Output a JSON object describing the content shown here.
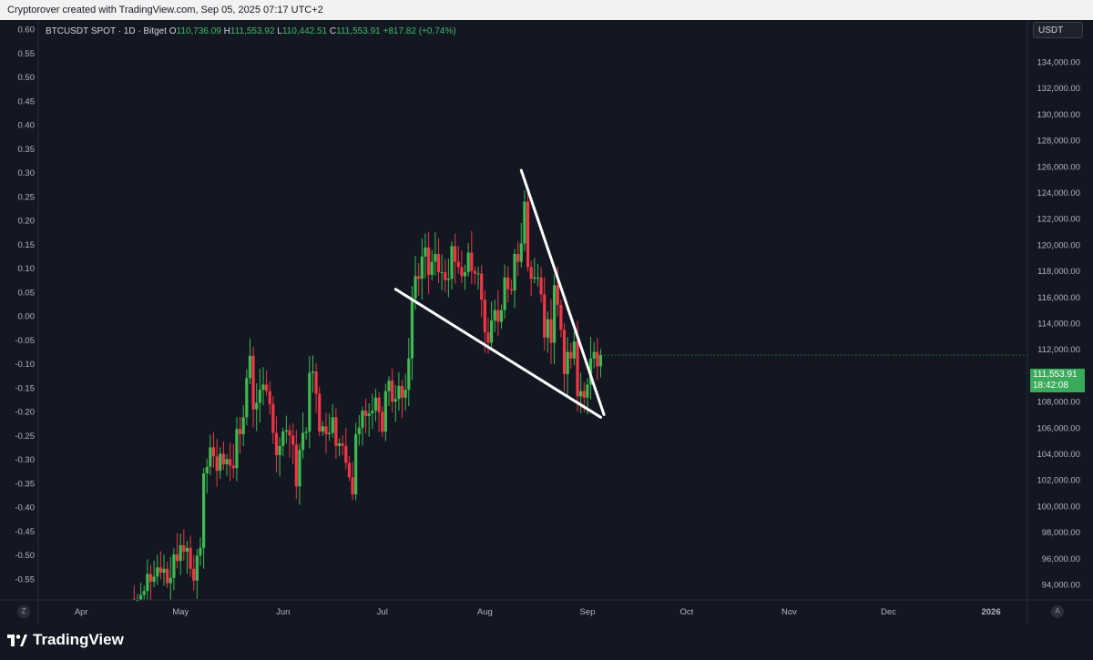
{
  "header": {
    "attribution": "Cryptorover created with TradingView.com, Sep 05, 2025 07:17 UTC+2"
  },
  "legend": {
    "symbol": "BTCUSDT SPOT · 1D · Bitget",
    "open_label": "O",
    "open": "110,736.09",
    "high_label": "H",
    "high": "111,553.92",
    "low_label": "L",
    "low": "110,442.51",
    "close_label": "C",
    "close": "111,553.91",
    "change": "+817.82 (+0.74%)"
  },
  "price_axis": {
    "currency": "USDT",
    "labels": [
      "134,000.00",
      "132,000.00",
      "130,000.00",
      "128,000.00",
      "126,000.00",
      "124,000.00",
      "122,000.00",
      "120,000.00",
      "118,000.00",
      "116,000.00",
      "114,000.00",
      "112,000.00",
      "110,000.00",
      "108,000.00",
      "106,000.00",
      "104,000.00",
      "102,000.00",
      "100,000.00",
      "98,000.00",
      "96,000.00",
      "94,000.00"
    ]
  },
  "current_price": {
    "price": "111,553.91",
    "countdown": "18:42:08",
    "color": "#3aab5b"
  },
  "left_axis": {
    "labels": [
      "0.60",
      "0.55",
      "0.50",
      "0.45",
      "0.40",
      "0.35",
      "0.30",
      "0.25",
      "0.20",
      "0.15",
      "0.10",
      "0.05",
      "0.00",
      "-0.05",
      "-0.10",
      "-0.15",
      "-0.20",
      "-0.25",
      "-0.30",
      "-0.35",
      "-0.40",
      "-0.45",
      "-0.50",
      "-0.55"
    ]
  },
  "time_axis": {
    "labels": [
      "Apr",
      "May",
      "Jun",
      "Jul",
      "Aug",
      "Sep",
      "Oct",
      "Nov",
      "Dec",
      "2026"
    ]
  },
  "buttons": {
    "left": "Z",
    "right": "A"
  },
  "footer": {
    "brand": "TradingView"
  },
  "colors": {
    "up": "#26a69a",
    "up_candle": "#3fb950",
    "down": "#f23645",
    "background": "#131722",
    "drawing": "#ffffff"
  },
  "chart_data": {
    "type": "candlestick",
    "symbol": "BTCUSDT",
    "interval": "1D",
    "ylim": [
      93000,
      135000
    ],
    "x_range": [
      "2025-03-19",
      "2026-01-12"
    ],
    "closes": [
      [
        "2025-04-17",
        92500
      ],
      [
        "2025-04-18",
        92800
      ],
      [
        "2025-04-19",
        93200
      ],
      [
        "2025-04-20",
        93500
      ],
      [
        "2025-04-21",
        94800
      ],
      [
        "2025-04-22",
        94200
      ],
      [
        "2025-04-23",
        94600
      ],
      [
        "2025-04-24",
        95300
      ],
      [
        "2025-04-25",
        94900
      ],
      [
        "2025-04-26",
        95200
      ],
      [
        "2025-04-27",
        94100
      ],
      [
        "2025-04-28",
        94500
      ],
      [
        "2025-04-29",
        96300
      ],
      [
        "2025-04-30",
        95800
      ],
      [
        "2025-05-01",
        97000
      ],
      [
        "2025-05-02",
        96500
      ],
      [
        "2025-05-03",
        96800
      ],
      [
        "2025-05-04",
        95200
      ],
      [
        "2025-05-05",
        94300
      ],
      [
        "2025-05-06",
        96200
      ],
      [
        "2025-05-07",
        96800
      ],
      [
        "2025-05-08",
        102500
      ],
      [
        "2025-05-09",
        103000
      ],
      [
        "2025-05-10",
        104500
      ],
      [
        "2025-05-11",
        103800
      ],
      [
        "2025-05-12",
        102700
      ],
      [
        "2025-05-13",
        104000
      ],
      [
        "2025-05-14",
        103200
      ],
      [
        "2025-05-15",
        103600
      ],
      [
        "2025-05-16",
        103100
      ],
      [
        "2025-05-17",
        102900
      ],
      [
        "2025-05-18",
        105900
      ],
      [
        "2025-05-19",
        105500
      ],
      [
        "2025-05-20",
        106800
      ],
      [
        "2025-05-21",
        109800
      ],
      [
        "2025-05-22",
        111500
      ],
      [
        "2025-05-23",
        107400
      ],
      [
        "2025-05-24",
        107900
      ],
      [
        "2025-05-25",
        108900
      ],
      [
        "2025-05-26",
        109300
      ],
      [
        "2025-05-27",
        108800
      ],
      [
        "2025-05-28",
        107800
      ],
      [
        "2025-05-29",
        105600
      ],
      [
        "2025-05-30",
        103900
      ],
      [
        "2025-05-31",
        104600
      ],
      [
        "2025-06-01",
        105700
      ],
      [
        "2025-06-02",
        105800
      ],
      [
        "2025-06-03",
        105400
      ],
      [
        "2025-06-04",
        104700
      ],
      [
        "2025-06-05",
        101500
      ],
      [
        "2025-06-06",
        104300
      ],
      [
        "2025-06-07",
        105600
      ],
      [
        "2025-06-08",
        105700
      ],
      [
        "2025-06-09",
        110200
      ],
      [
        "2025-06-10",
        110300
      ],
      [
        "2025-06-11",
        108600
      ],
      [
        "2025-06-12",
        105700
      ],
      [
        "2025-06-13",
        106100
      ],
      [
        "2025-06-14",
        105500
      ],
      [
        "2025-06-15",
        105600
      ],
      [
        "2025-06-16",
        106800
      ],
      [
        "2025-06-17",
        104600
      ],
      [
        "2025-06-18",
        104800
      ],
      [
        "2025-06-19",
        104600
      ],
      [
        "2025-06-20",
        103300
      ],
      [
        "2025-06-21",
        102200
      ],
      [
        "2025-06-22",
        100900
      ],
      [
        "2025-06-23",
        105500
      ],
      [
        "2025-06-24",
        106000
      ],
      [
        "2025-06-25",
        107300
      ],
      [
        "2025-06-26",
        106900
      ],
      [
        "2025-06-27",
        107100
      ],
      [
        "2025-06-28",
        107300
      ],
      [
        "2025-06-29",
        108300
      ],
      [
        "2025-06-30",
        107200
      ],
      [
        "2025-07-01",
        105700
      ],
      [
        "2025-07-02",
        108800
      ],
      [
        "2025-07-03",
        109600
      ],
      [
        "2025-07-04",
        108000
      ],
      [
        "2025-07-05",
        108200
      ],
      [
        "2025-07-06",
        109200
      ],
      [
        "2025-07-07",
        108300
      ],
      [
        "2025-07-08",
        108900
      ],
      [
        "2025-07-09",
        111300
      ],
      [
        "2025-07-10",
        115900
      ],
      [
        "2025-07-11",
        117600
      ],
      [
        "2025-07-12",
        117400
      ],
      [
        "2025-07-13",
        119100
      ],
      [
        "2025-07-14",
        119800
      ],
      [
        "2025-07-15",
        117700
      ],
      [
        "2025-07-16",
        118700
      ],
      [
        "2025-07-17",
        119300
      ],
      [
        "2025-07-18",
        117900
      ],
      [
        "2025-07-19",
        117900
      ],
      [
        "2025-07-20",
        117300
      ],
      [
        "2025-07-21",
        117400
      ],
      [
        "2025-07-22",
        119900
      ],
      [
        "2025-07-23",
        118700
      ],
      [
        "2025-07-24",
        118300
      ],
      [
        "2025-07-25",
        117600
      ],
      [
        "2025-07-26",
        117900
      ],
      [
        "2025-07-27",
        119400
      ],
      [
        "2025-07-28",
        118000
      ],
      [
        "2025-07-29",
        117800
      ],
      [
        "2025-07-30",
        117800
      ],
      [
        "2025-07-31",
        115800
      ],
      [
        "2025-08-01",
        113300
      ],
      [
        "2025-08-02",
        112500
      ],
      [
        "2025-08-03",
        114200
      ],
      [
        "2025-08-04",
        115000
      ],
      [
        "2025-08-05",
        114100
      ],
      [
        "2025-08-06",
        115000
      ],
      [
        "2025-08-07",
        117500
      ],
      [
        "2025-08-08",
        116600
      ],
      [
        "2025-08-09",
        116500
      ],
      [
        "2025-08-10",
        119300
      ],
      [
        "2025-08-11",
        118700
      ],
      [
        "2025-08-12",
        120100
      ],
      [
        "2025-08-13",
        123300
      ],
      [
        "2025-08-14",
        118300
      ],
      [
        "2025-08-15",
        117400
      ],
      [
        "2025-08-16",
        117500
      ],
      [
        "2025-08-17",
        117500
      ],
      [
        "2025-08-18",
        116200
      ],
      [
        "2025-08-19",
        112900
      ],
      [
        "2025-08-20",
        114300
      ],
      [
        "2025-08-21",
        112500
      ],
      [
        "2025-08-22",
        116900
      ],
      [
        "2025-08-23",
        115400
      ],
      [
        "2025-08-24",
        113500
      ],
      [
        "2025-08-25",
        110100
      ],
      [
        "2025-08-26",
        111800
      ],
      [
        "2025-08-27",
        111300
      ],
      [
        "2025-08-28",
        112600
      ],
      [
        "2025-08-29",
        108400
      ],
      [
        "2025-08-30",
        108800
      ],
      [
        "2025-08-31",
        108300
      ],
      [
        "2025-09-01",
        109300
      ],
      [
        "2025-09-02",
        111300
      ],
      [
        "2025-09-03",
        111800
      ],
      [
        "2025-09-04",
        110700
      ],
      [
        "2025-09-05",
        111554
      ]
    ],
    "trendlines": [
      {
        "name": "upper",
        "from": [
          "2025-08-12",
          125700
        ],
        "to": [
          "2025-09-06",
          107000
        ]
      },
      {
        "name": "lower",
        "from": [
          "2025-07-05",
          116600
        ],
        "to": [
          "2025-09-05",
          106800
        ]
      }
    ]
  }
}
